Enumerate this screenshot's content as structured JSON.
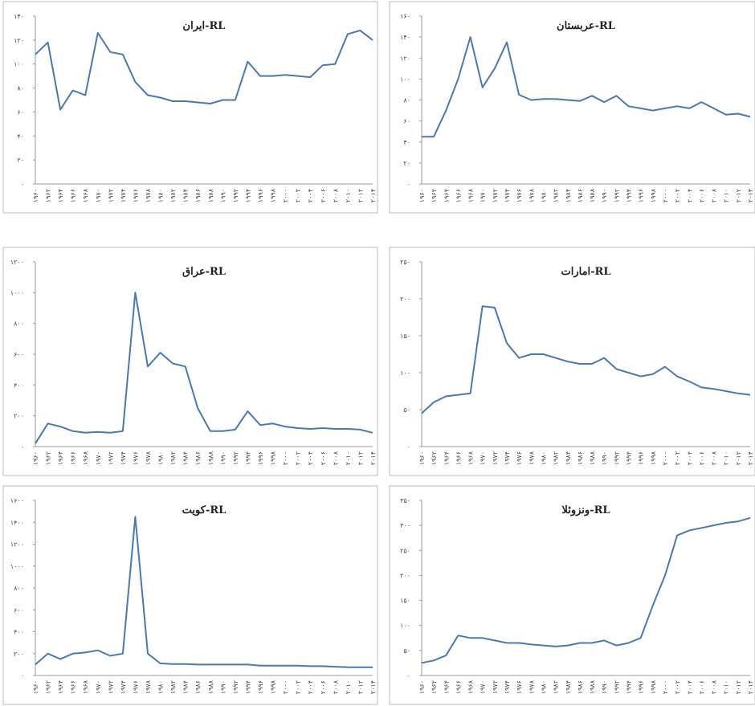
{
  "chart_data": [
    {
      "type": "line",
      "title": "ایران-RL",
      "color": "#4a78b0",
      "categories": [
        "۱۹۶۰",
        "۱۹۶۲",
        "۱۹۶۴",
        "۱۹۶۶",
        "۱۹۶۸",
        "۱۹۷۰",
        "۱۹۷۲",
        "۱۹۷۴",
        "۱۹۷۶",
        "۱۹۷۸",
        "۱۹۸۰",
        "۱۹۸۲",
        "۱۹۸۴",
        "۱۹۸۶",
        "۱۹۸۸",
        "۱۹۹۰",
        "۱۹۹۲",
        "۱۹۹۴",
        "۱۹۹۶",
        "۱۹۹۸",
        "۲۰۰۰",
        "۲۰۰۲",
        "۲۰۰۴",
        "۲۰۰۶",
        "۲۰۰۸",
        "۲۰۱۰",
        "۲۰۱۲",
        "۲۰۱۴"
      ],
      "values": [
        108,
        118,
        62,
        78,
        74,
        126,
        110,
        108,
        85,
        74,
        72,
        69,
        69,
        68,
        67,
        70,
        70,
        102,
        90,
        90,
        91,
        90,
        89,
        99,
        100,
        125,
        128,
        120
      ],
      "ylim": [
        0,
        140
      ],
      "yticks": [
        {
          "value": 0,
          "label": "۰"
        },
        {
          "value": 20,
          "label": "۲۰"
        },
        {
          "value": 40,
          "label": "۴۰"
        },
        {
          "value": 60,
          "label": "۶۰"
        },
        {
          "value": 80,
          "label": "۸۰"
        },
        {
          "value": 100,
          "label": "۱۰۰"
        },
        {
          "value": 120,
          "label": "۱۲۰"
        },
        {
          "value": 140,
          "label": "۱۴۰"
        }
      ]
    },
    {
      "type": "line",
      "title": "عربستان-RL",
      "color": "#4a78b0",
      "categories": [
        "۱۹۶۰",
        "۱۹۶۲",
        "۱۹۶۴",
        "۱۹۶۶",
        "۱۹۶۸",
        "۱۹۷۰",
        "۱۹۷۲",
        "۱۹۷۴",
        "۱۹۷۶",
        "۱۹۷۸",
        "۱۹۸۰",
        "۱۹۸۲",
        "۱۹۸۴",
        "۱۹۸۶",
        "۱۹۸۸",
        "۱۹۹۰",
        "۱۹۹۲",
        "۱۹۹۴",
        "۱۹۹۶",
        "۱۹۹۸",
        "۲۰۰۰",
        "۲۰۰۲",
        "۲۰۰۴",
        "۲۰۰۶",
        "۲۰۰۸",
        "۲۰۱۰",
        "۲۰۱۲",
        "۲۰۱۴"
      ],
      "values": [
        45,
        45,
        70,
        100,
        140,
        92,
        110,
        135,
        85,
        80,
        81,
        81,
        80,
        79,
        84,
        78,
        84,
        74,
        72,
        70,
        72,
        74,
        72,
        78,
        72,
        66,
        67,
        64
      ],
      "ylim": [
        0,
        160
      ],
      "yticks": [
        {
          "value": 0,
          "label": "۰"
        },
        {
          "value": 20,
          "label": "۲۰"
        },
        {
          "value": 40,
          "label": "۴۰"
        },
        {
          "value": 60,
          "label": "۶۰"
        },
        {
          "value": 80,
          "label": "۸۰"
        },
        {
          "value": 100,
          "label": "۱۰۰"
        },
        {
          "value": 120,
          "label": "۱۲۰"
        },
        {
          "value": 140,
          "label": "۱۴۰"
        },
        {
          "value": 160,
          "label": "۱۶۰"
        }
      ]
    },
    {
      "type": "line",
      "title": "عراق-RL",
      "color": "#4a78b0",
      "categories": [
        "۱۹۶۰",
        "۱۹۶۲",
        "۱۹۶۴",
        "۱۹۶۶",
        "۱۹۶۸",
        "۱۹۷۰",
        "۱۹۷۲",
        "۱۹۷۴",
        "۱۹۷۶",
        "۱۹۷۸",
        "۱۹۸۰",
        "۱۹۸۲",
        "۱۹۸۴",
        "۱۹۸۶",
        "۱۹۸۸",
        "۱۹۹۰",
        "۱۹۹۲",
        "۱۹۹۴",
        "۱۹۹۶",
        "۱۹۹۸",
        "۲۰۰۰",
        "۲۰۰۲",
        "۲۰۰۴",
        "۲۰۰۶",
        "۲۰۰۸",
        "۲۰۱۰",
        "۲۰۱۲",
        "۲۰۱۴"
      ],
      "values": [
        20,
        150,
        130,
        100,
        90,
        95,
        90,
        100,
        1000,
        520,
        610,
        540,
        520,
        250,
        100,
        100,
        110,
        230,
        140,
        150,
        130,
        120,
        115,
        120,
        115,
        115,
        110,
        90
      ],
      "ylim": [
        0,
        1200
      ],
      "yticks": [
        {
          "value": 0,
          "label": "۰"
        },
        {
          "value": 200,
          "label": "۲۰۰"
        },
        {
          "value": 400,
          "label": "۴۰۰"
        },
        {
          "value": 600,
          "label": "۶۰۰"
        },
        {
          "value": 800,
          "label": "۸۰۰"
        },
        {
          "value": 1000,
          "label": "۱۰۰۰"
        },
        {
          "value": 1200,
          "label": "۱۲۰۰"
        }
      ]
    },
    {
      "type": "line",
      "title": "امارات-RL",
      "color": "#4a78b0",
      "categories": [
        "۱۹۶۰",
        "۱۹۶۲",
        "۱۹۶۴",
        "۱۹۶۶",
        "۱۹۶۸",
        "۱۹۷۰",
        "۱۹۷۲",
        "۱۹۷۴",
        "۱۹۷۶",
        "۱۹۷۸",
        "۱۹۸۰",
        "۱۹۸۲",
        "۱۹۸۴",
        "۱۹۸۶",
        "۱۹۸۸",
        "۱۹۹۰",
        "۱۹۹۲",
        "۱۹۹۴",
        "۱۹۹۶",
        "۱۹۹۸",
        "۲۰۰۰",
        "۲۰۰۲",
        "۲۰۰۴",
        "۲۰۰۶",
        "۲۰۰۸",
        "۲۰۱۰",
        "۲۰۱۲",
        "۲۰۱۴"
      ],
      "values": [
        45,
        60,
        68,
        70,
        72,
        190,
        188,
        140,
        120,
        125,
        125,
        120,
        115,
        112,
        112,
        120,
        105,
        100,
        95,
        98,
        108,
        95,
        88,
        80,
        78,
        75,
        72,
        70
      ],
      "ylim": [
        0,
        250
      ],
      "yticks": [
        {
          "value": 0,
          "label": "۰"
        },
        {
          "value": 50,
          "label": "۵۰"
        },
        {
          "value": 100,
          "label": "۱۰۰"
        },
        {
          "value": 150,
          "label": "۱۵۰"
        },
        {
          "value": 200,
          "label": "۲۰۰"
        },
        {
          "value": 250,
          "label": "۲۵۰"
        }
      ]
    },
    {
      "type": "line",
      "title": "کویت-RL",
      "color": "#4a78b0",
      "categories": [
        "۱۹۶۰",
        "۱۹۶۲",
        "۱۹۶۴",
        "۱۹۶۶",
        "۱۹۶۸",
        "۱۹۷۰",
        "۱۹۷۲",
        "۱۹۷۴",
        "۱۹۷۶",
        "۱۹۷۸",
        "۱۹۸۰",
        "۱۹۸۲",
        "۱۹۸۴",
        "۱۹۸۶",
        "۱۹۸۸",
        "۱۹۹۰",
        "۱۹۹۲",
        "۱۹۹۴",
        "۱۹۹۶",
        "۱۹۹۸",
        "۲۰۰۰",
        "۲۰۰۲",
        "۲۰۰۴",
        "۲۰۰۶",
        "۲۰۰۸",
        "۲۰۱۰",
        "۲۰۱۲",
        "۲۰۱۴"
      ],
      "values": [
        100,
        200,
        150,
        200,
        210,
        230,
        180,
        200,
        1450,
        200,
        110,
        105,
        105,
        100,
        100,
        100,
        100,
        100,
        90,
        90,
        90,
        90,
        85,
        85,
        80,
        75,
        75,
        75
      ],
      "ylim": [
        0,
        1600
      ],
      "yticks": [
        {
          "value": 0,
          "label": "۰"
        },
        {
          "value": 200,
          "label": "۲۰۰"
        },
        {
          "value": 400,
          "label": "۴۰۰"
        },
        {
          "value": 600,
          "label": "۶۰۰"
        },
        {
          "value": 800,
          "label": "۸۰۰"
        },
        {
          "value": 1000,
          "label": "۱۰۰۰"
        },
        {
          "value": 1200,
          "label": "۱۲۰۰"
        },
        {
          "value": 1400,
          "label": "۱۴۰۰"
        },
        {
          "value": 1600,
          "label": "۱۶۰۰"
        }
      ]
    },
    {
      "type": "line",
      "title": "ونزوئلا-RL",
      "color": "#4a78b0",
      "categories": [
        "۱۹۶۰",
        "۱۹۶۲",
        "۱۹۶۴",
        "۱۹۶۶",
        "۱۹۶۸",
        "۱۹۷۰",
        "۱۹۷۲",
        "۱۹۷۴",
        "۱۹۷۶",
        "۱۹۷۸",
        "۱۹۸۰",
        "۱۹۸۲",
        "۱۹۸۴",
        "۱۹۸۶",
        "۱۹۸۸",
        "۱۹۹۰",
        "۱۹۹۲",
        "۱۹۹۴",
        "۱۹۹۶",
        "۱۹۹۸",
        "۲۰۰۰",
        "۲۰۰۲",
        "۲۰۰۴",
        "۲۰۰۶",
        "۲۰۰۸",
        "۲۰۱۰",
        "۲۰۱۲",
        "۲۰۱۴"
      ],
      "values": [
        25,
        30,
        40,
        80,
        75,
        75,
        70,
        65,
        65,
        62,
        60,
        58,
        60,
        65,
        65,
        70,
        60,
        65,
        75,
        140,
        200,
        280,
        290,
        295,
        300,
        305,
        308,
        315
      ],
      "ylim": [
        0,
        350
      ],
      "yticks": [
        {
          "value": 0,
          "label": "۰"
        },
        {
          "value": 50,
          "label": "۵۰"
        },
        {
          "value": 100,
          "label": "۱۰۰"
        },
        {
          "value": 150,
          "label": "۱۵۰"
        },
        {
          "value": 200,
          "label": "۲۰۰"
        },
        {
          "value": 250,
          "label": "۲۵۰"
        },
        {
          "value": 300,
          "label": "۳۰۰"
        },
        {
          "value": 350,
          "label": "۳۵۰"
        }
      ]
    }
  ]
}
